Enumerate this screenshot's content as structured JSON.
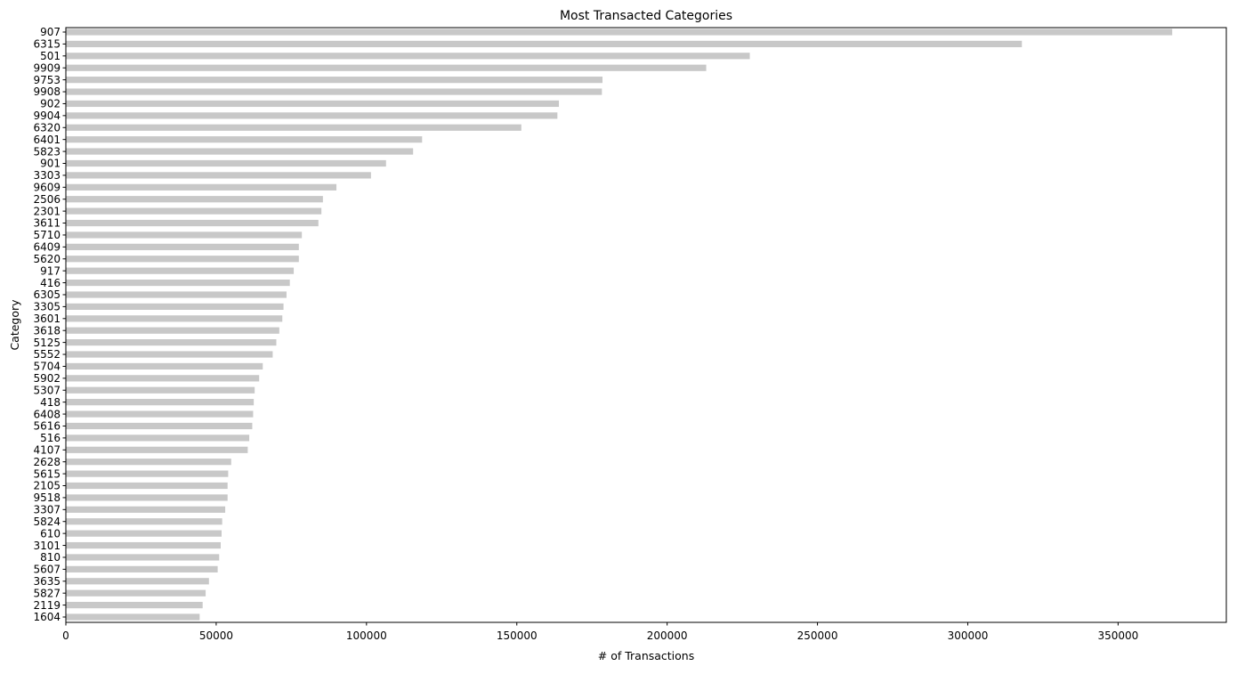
{
  "chart_data": {
    "type": "bar",
    "orientation": "horizontal",
    "title": "Most Transacted Categories",
    "xlabel": "# of Transactions",
    "ylabel": "Category",
    "xlim": [
      0,
      386000
    ],
    "xticks": [
      0,
      50000,
      100000,
      150000,
      200000,
      250000,
      300000,
      350000
    ],
    "grid": false,
    "bar_color": "#c8c8c8",
    "categories": [
      "907",
      "6315",
      "501",
      "9909",
      "9753",
      "9908",
      "902",
      "9904",
      "6320",
      "6401",
      "5823",
      "901",
      "3303",
      "9609",
      "2506",
      "2301",
      "3611",
      "5710",
      "6409",
      "5620",
      "917",
      "416",
      "6305",
      "3305",
      "3601",
      "3618",
      "5125",
      "5552",
      "5704",
      "5902",
      "5307",
      "418",
      "6408",
      "5616",
      "516",
      "4107",
      "2628",
      "5615",
      "2105",
      "9518",
      "3307",
      "5824",
      "610",
      "3101",
      "810",
      "5607",
      "3635",
      "5827",
      "2119",
      "1604"
    ],
    "values": [
      368000,
      318000,
      227500,
      213000,
      178500,
      178300,
      164000,
      163500,
      151500,
      118500,
      115500,
      106500,
      101500,
      90000,
      85500,
      85000,
      84000,
      78500,
      77500,
      77500,
      75800,
      74500,
      73400,
      72400,
      72000,
      71000,
      70000,
      68800,
      65500,
      64300,
      62800,
      62500,
      62300,
      62000,
      61000,
      60500,
      55000,
      54000,
      53800,
      53800,
      53000,
      52000,
      51800,
      51500,
      51000,
      50500,
      47600,
      46500,
      45500,
      44500
    ]
  }
}
